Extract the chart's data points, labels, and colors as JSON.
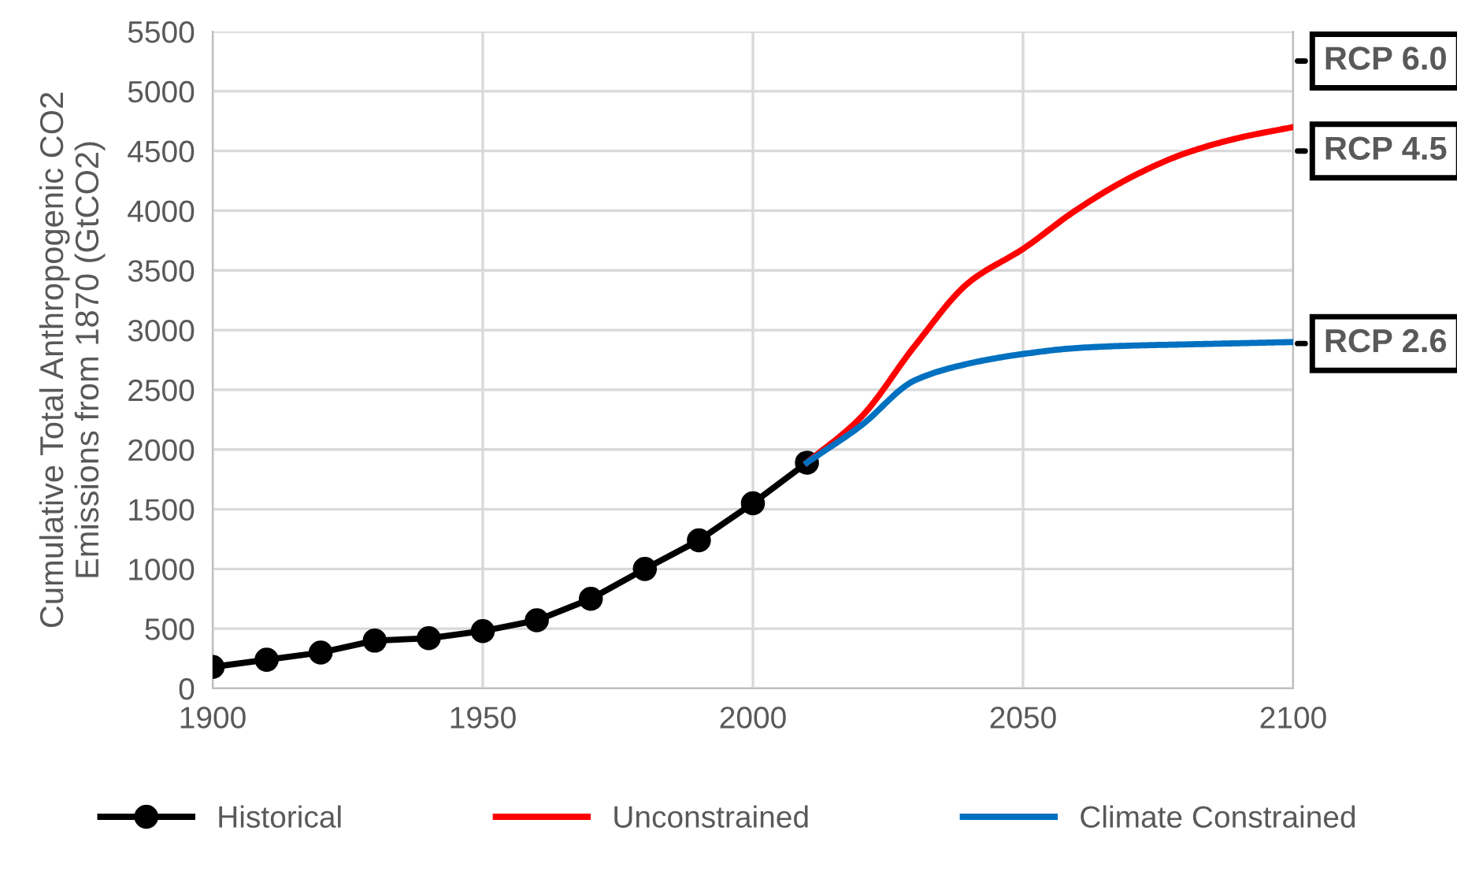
{
  "chart_data": {
    "type": "line",
    "ylabel": "Cumulative Total Anthropogenic CO2\nEmissions from 1870 (GtCO2)",
    "xlim": [
      1900,
      2100
    ],
    "xticks": [
      1900,
      1950,
      2000,
      2050,
      2100
    ],
    "ylim": [
      0,
      5500
    ],
    "yticks": [
      0,
      500,
      1000,
      1500,
      2000,
      2500,
      3000,
      3500,
      4000,
      4500,
      5000,
      5500
    ],
    "grid": true,
    "legend": "bottom",
    "line_style": "solid",
    "series": [
      {
        "name": "Historical",
        "color": "#000000",
        "marker": "circle",
        "x": [
          1900,
          1910,
          1920,
          1930,
          1940,
          1950,
          1960,
          1970,
          1980,
          1990,
          2000,
          2010
        ],
        "values": [
          180,
          240,
          300,
          400,
          420,
          480,
          570,
          750,
          1000,
          1240,
          1550,
          1890
        ]
      },
      {
        "name": "Unconstrained",
        "color": "#ff0000",
        "marker": "none",
        "x": [
          2010,
          2020,
          2030,
          2040,
          2050,
          2060,
          2070,
          2080,
          2090,
          2100
        ],
        "values": [
          1890,
          2270,
          2870,
          3400,
          3680,
          4010,
          4280,
          4480,
          4610,
          4700
        ]
      },
      {
        "name": "Climate Constrained",
        "color": "#0070c0",
        "marker": "none",
        "x": [
          2010,
          2020,
          2030,
          2040,
          2050,
          2060,
          2070,
          2080,
          2090,
          2100
        ],
        "values": [
          1890,
          2200,
          2580,
          2720,
          2800,
          2850,
          2870,
          2880,
          2890,
          2900
        ]
      }
    ],
    "annotations": [
      "RCP 6.0",
      "RCP 4.5",
      "RCP 2.6"
    ]
  }
}
